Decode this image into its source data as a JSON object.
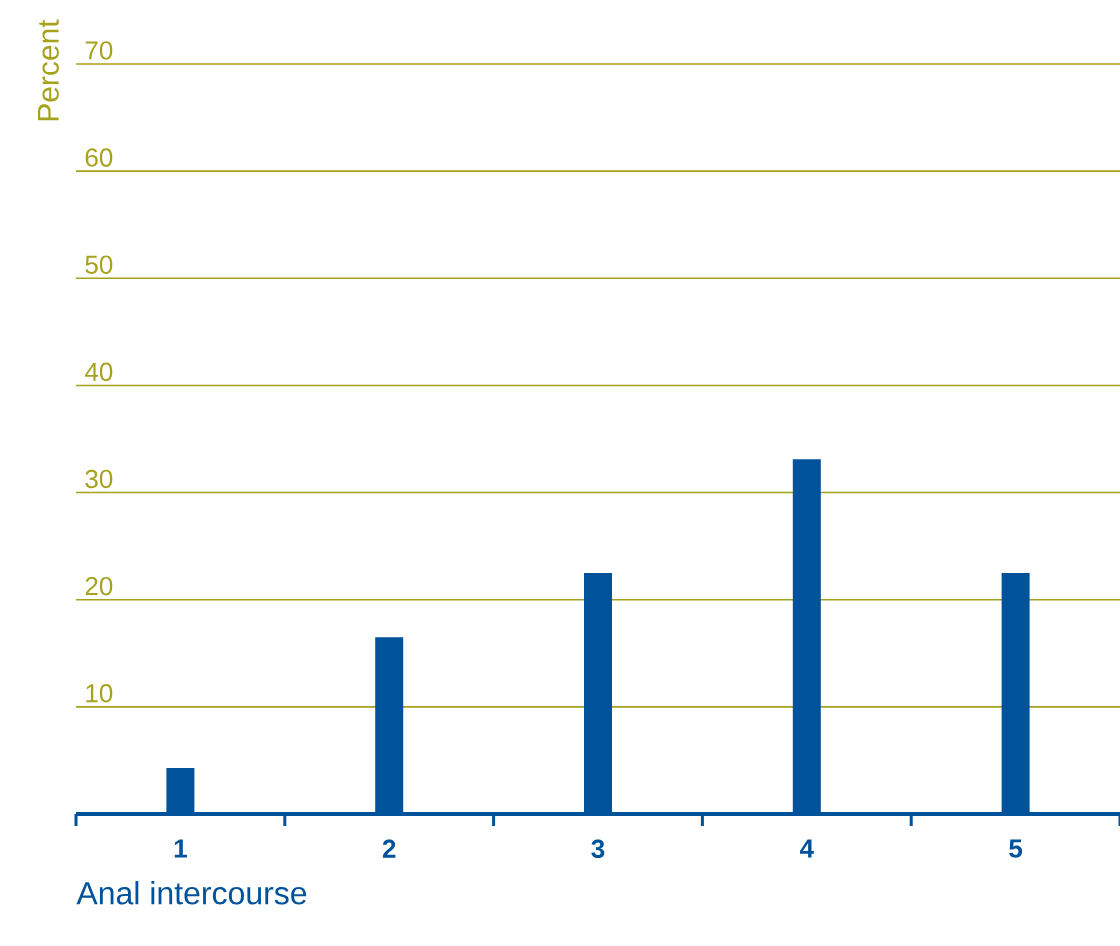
{
  "chart_data": {
    "type": "bar",
    "xlabel": "Anal intercourse",
    "ylabel": "Percent",
    "categories": [
      "1",
      "2",
      "3",
      "4",
      "5"
    ],
    "values": [
      4.3,
      16.5,
      22.5,
      33.1,
      22.5
    ],
    "color": "#00529b",
    "ylim": [
      0,
      70
    ],
    "yticks": [
      10,
      20,
      30,
      40,
      50,
      60,
      70
    ],
    "grid": "y"
  }
}
